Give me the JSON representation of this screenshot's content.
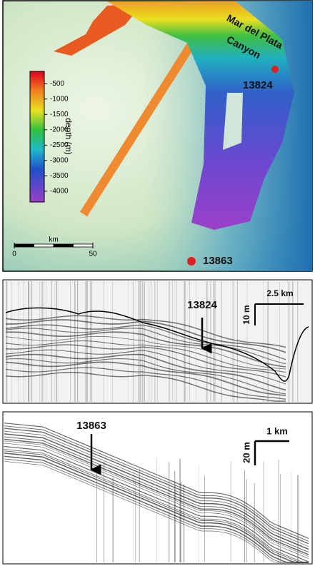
{
  "map": {
    "canyon_label": [
      "Mar del Plata",
      "Canyon"
    ],
    "stations": [
      {
        "label": "13824"
      },
      {
        "label": "13863"
      }
    ],
    "colorbar": {
      "title": "depth (m)",
      "lim": [
        -4350,
        -100
      ],
      "ticks": [
        -500,
        -1000,
        -1500,
        -2000,
        -2500,
        -3000,
        -3500,
        -4000
      ]
    },
    "scale_bar": {
      "title": "km",
      "lim": [
        0,
        50
      ],
      "ticks": [
        0,
        50
      ]
    }
  },
  "profiles": [
    {
      "station": "13824",
      "scale_h": "2.5 km",
      "scale_v": "10 m"
    },
    {
      "station": "13863",
      "scale_h": "1 km",
      "scale_v": "20 m"
    }
  ]
}
